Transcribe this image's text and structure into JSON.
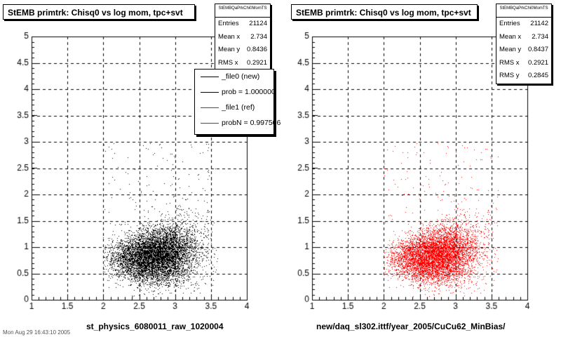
{
  "chart_data": [
    {
      "type": "scatter",
      "title": "StEMB primtrk: Chisq0 vs log mom, tpc+svt",
      "xlabel": "st_physics_6080011_raw_1020004",
      "ylabel": "",
      "xlim": [
        1,
        4
      ],
      "ylim": [
        0,
        5
      ],
      "x_ticks": [
        "1",
        "1.5",
        "2",
        "2.5",
        "3",
        "3.5",
        "4"
      ],
      "y_ticks": [
        "0",
        "0.5",
        "1",
        "1.5",
        "2",
        "2.5",
        "3",
        "3.5",
        "4",
        "4.5",
        "5"
      ],
      "grid": true,
      "marker_color": "#000000",
      "distribution": {
        "x_center": 2.73,
        "x_rms": 0.29,
        "y_center": 0.84,
        "y_rms": 0.28,
        "x_min": 2.0,
        "x_max": 3.6
      },
      "stats": {
        "name": "StEMBQaPrkChi0MomTS",
        "rows": [
          {
            "label": "Entries",
            "value": "21124"
          },
          {
            "label": "Mean x",
            "value": "2.734"
          },
          {
            "label": "Mean y",
            "value": "0.8436"
          },
          {
            "label": "RMS x",
            "value": "0.2921"
          }
        ]
      },
      "legend": {
        "placement": "top-right",
        "entries": [
          {
            "label": "_file0 (new)",
            "color": "#000000"
          },
          {
            "label": "prob = 1.000000",
            "color": "#000000"
          },
          {
            "label": "_file1 (ref)",
            "color": "#ff0000"
          },
          {
            "label": "probN = 0.997506",
            "color": "#ff0000"
          }
        ]
      }
    },
    {
      "type": "scatter",
      "title": "StEMB primtrk: Chisq0 vs log mom, tpc+svt",
      "xlabel": "new/daq_sl302.ittf/year_2005/CuCu62_MinBias/",
      "ylabel": "",
      "xlim": [
        1,
        4
      ],
      "ylim": [
        0,
        5
      ],
      "x_ticks": [
        "1",
        "1.5",
        "2",
        "2.5",
        "3",
        "3.5",
        "4"
      ],
      "y_ticks": [
        "0",
        "0.5",
        "1",
        "1.5",
        "2",
        "2.5",
        "3",
        "3.5",
        "4",
        "4.5",
        "5"
      ],
      "grid": true,
      "marker_color": "#ff0000",
      "distribution": {
        "x_center": 2.73,
        "x_rms": 0.29,
        "y_center": 0.84,
        "y_rms": 0.28,
        "x_min": 2.0,
        "x_max": 3.6
      },
      "stats": {
        "name": "StEMBQaPrkChi0MomTS",
        "rows": [
          {
            "label": "Entries",
            "value": "21142"
          },
          {
            "label": "Mean x",
            "value": "2.734"
          },
          {
            "label": "Mean y",
            "value": "0.8437"
          },
          {
            "label": "RMS x",
            "value": "0.2921"
          },
          {
            "label": "RMS y",
            "value": "0.2845"
          }
        ]
      }
    }
  ],
  "footer_stamp": "Mon Aug 29 16:43:10 2005"
}
